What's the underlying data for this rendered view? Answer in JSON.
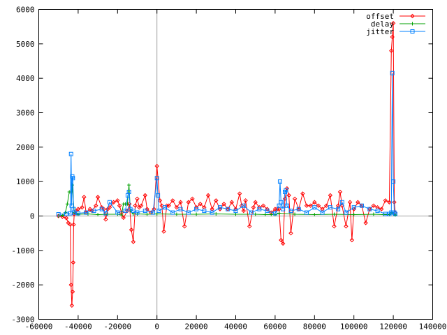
{
  "chart_data": {
    "type": "line",
    "xlim": [
      -60000,
      140000
    ],
    "ylim": [
      -3000,
      6000
    ],
    "x_ticks": [
      "-60000",
      "-40000",
      "-20000",
      "0",
      "20000",
      "40000",
      "60000",
      "80000",
      "100000",
      "120000",
      "140000"
    ],
    "y_ticks": [
      "6000",
      "5000",
      "4000",
      "3000",
      "2000",
      "1000",
      "0",
      "-1000",
      "-2000",
      "-3000"
    ],
    "zero_axes": true,
    "legend": "top-right",
    "series": [
      {
        "name": "offset",
        "color": "#ff0000",
        "marker": "diamond",
        "x": [
          -50000,
          -48000,
          -46000,
          -45000,
          -44000,
          -43600,
          -43200,
          -42800,
          -42500,
          -42300,
          -42000,
          -41000,
          -40000,
          -38000,
          -37000,
          -36000,
          -34000,
          -33000,
          -31000,
          -30000,
          -28000,
          -27000,
          -26000,
          -25000,
          -24000,
          -22000,
          -20000,
          -19000,
          -18000,
          -17000,
          -15000,
          -14000,
          -13000,
          -12000,
          -11000,
          -10000,
          -9000,
          -8000,
          -6000,
          -5000,
          -3000,
          -1500,
          0,
          1500,
          2500,
          3500,
          5000,
          6000,
          8000,
          10000,
          12000,
          14000,
          16000,
          18000,
          20000,
          22000,
          24000,
          26000,
          28000,
          30000,
          32000,
          34000,
          36000,
          38000,
          40000,
          42000,
          43000,
          44000,
          45000,
          47000,
          49000,
          50000,
          52000,
          54000,
          56000,
          58000,
          60000,
          61000,
          62000,
          63000,
          64000,
          65000,
          66000,
          67000,
          68000,
          70000,
          72000,
          74000,
          76000,
          78000,
          80000,
          82000,
          84000,
          86000,
          88000,
          90000,
          92000,
          93000,
          94000,
          96000,
          98000,
          99000,
          100000,
          102000,
          104000,
          106000,
          108000,
          110000,
          112000,
          114000,
          116000,
          118000,
          119000,
          119500,
          120000,
          120500,
          121000
        ],
        "values": [
          0,
          -20,
          -60,
          -200,
          -250,
          -2000,
          -2600,
          -2200,
          -1350,
          -250,
          50,
          150,
          200,
          250,
          550,
          100,
          200,
          150,
          300,
          550,
          250,
          200,
          -100,
          200,
          250,
          400,
          450,
          300,
          100,
          -50,
          150,
          350,
          -400,
          -750,
          300,
          500,
          250,
          300,
          600,
          200,
          100,
          200,
          1450,
          450,
          300,
          -450,
          300,
          300,
          450,
          250,
          400,
          -300,
          400,
          500,
          250,
          350,
          250,
          600,
          200,
          450,
          200,
          350,
          200,
          400,
          200,
          650,
          300,
          150,
          450,
          -300,
          250,
          400,
          250,
          300,
          200,
          100,
          200,
          200,
          200,
          -700,
          -800,
          500,
          800,
          600,
          -500,
          500,
          200,
          650,
          300,
          300,
          400,
          300,
          200,
          300,
          600,
          -300,
          300,
          700,
          300,
          -300,
          400,
          -700,
          200,
          400,
          300,
          -200,
          200,
          300,
          250,
          200,
          450,
          400,
          4800,
          5200,
          5600,
          400,
          100
        ]
      },
      {
        "name": "delay",
        "color": "#00a000",
        "marker": "plus",
        "x": [
          -50000,
          -48000,
          -46500,
          -45500,
          -44500,
          -43600,
          -43000,
          -42000,
          -40000,
          -35000,
          -30000,
          -25000,
          -20000,
          -18000,
          -17000,
          -16000,
          -15000,
          -14200,
          -13500,
          -12000,
          -10000,
          -5000,
          0,
          10000,
          20000,
          30000,
          40000,
          50000,
          55000,
          58000,
          60000,
          62000,
          70000,
          80000,
          90000,
          100000,
          110000,
          115000,
          118000,
          119000,
          120000,
          121000
        ],
        "values": [
          0,
          20,
          100,
          350,
          700,
          700,
          900,
          100,
          50,
          60,
          40,
          50,
          50,
          30,
          350,
          350,
          350,
          900,
          150,
          60,
          60,
          50,
          60,
          50,
          50,
          60,
          50,
          50,
          40,
          40,
          40,
          80,
          50,
          40,
          50,
          40,
          50,
          40,
          40,
          100,
          50,
          30
        ]
      },
      {
        "name": "jitter",
        "color": "#0080ff",
        "marker": "square",
        "x": [
          -50000,
          -46000,
          -44000,
          -43600,
          -43300,
          -43000,
          -42700,
          -42300,
          -42000,
          -40000,
          -36000,
          -32000,
          -28000,
          -26000,
          -24000,
          -20000,
          -16000,
          -14800,
          -14200,
          -13500,
          -12000,
          -10000,
          -6000,
          -2000,
          0,
          500,
          1000,
          4000,
          8000,
          12000,
          16000,
          20000,
          24000,
          28000,
          32000,
          36000,
          40000,
          44000,
          48000,
          52000,
          56000,
          60000,
          62000,
          62500,
          63000,
          64000,
          65000,
          65500,
          66000,
          68000,
          72000,
          76000,
          80000,
          84000,
          88000,
          92000,
          94000,
          96000,
          100000,
          104000,
          108000,
          112000,
          116000,
          118000,
          119000,
          119500,
          120000,
          120500,
          121000
        ],
        "values": [
          50,
          60,
          80,
          1800,
          300,
          1150,
          1100,
          200,
          100,
          80,
          100,
          150,
          200,
          80,
          400,
          100,
          150,
          600,
          700,
          200,
          150,
          100,
          150,
          100,
          1100,
          600,
          150,
          250,
          100,
          200,
          100,
          200,
          150,
          100,
          250,
          200,
          150,
          300,
          100,
          200,
          150,
          80,
          300,
          1000,
          400,
          200,
          700,
          750,
          300,
          150,
          200,
          100,
          250,
          100,
          250,
          200,
          400,
          100,
          250,
          300,
          200,
          150,
          60,
          60,
          100,
          4150,
          1000,
          100,
          60
        ]
      }
    ]
  }
}
